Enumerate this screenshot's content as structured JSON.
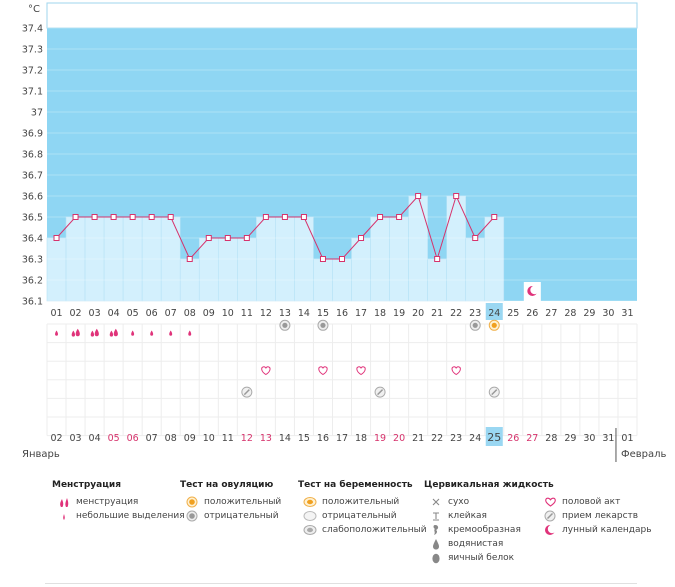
{
  "chart_data": {
    "type": "line",
    "unit_label": "°C",
    "ylim": [
      36.1,
      37.4
    ],
    "y_ticks": [
      "37.4",
      "37.3",
      "37.2",
      "37.1",
      "37",
      "36.9",
      "36.8",
      "36.7",
      "36.6",
      "36.5",
      "36.4",
      "36.3",
      "36.2",
      "36.1"
    ],
    "days": [
      "01",
      "02",
      "03",
      "04",
      "05",
      "06",
      "07",
      "08",
      "09",
      "10",
      "11",
      "12",
      "13",
      "14",
      "15",
      "16",
      "17",
      "18",
      "19",
      "20",
      "21",
      "22",
      "23",
      "24",
      "25",
      "26",
      "27",
      "28",
      "29",
      "30",
      "31"
    ],
    "temperatures": [
      36.4,
      36.5,
      36.5,
      36.5,
      36.5,
      36.5,
      36.5,
      36.3,
      36.4,
      36.4,
      36.4,
      36.5,
      36.5,
      36.5,
      36.3,
      36.3,
      36.4,
      36.5,
      36.5,
      36.6,
      36.3,
      36.6,
      36.4,
      36.5
    ],
    "current_day": "24",
    "menstruation": {
      "heavy": [
        "02",
        "03",
        "04"
      ],
      "light": [
        "01",
        "05",
        "06",
        "07",
        "08"
      ]
    },
    "ovulation_negative": [
      "13",
      "15",
      "23"
    ],
    "ovulation_positive": [
      "24"
    ],
    "intercourse": [
      "12",
      "15",
      "17",
      "22"
    ],
    "medication": [
      "11",
      "18",
      "24"
    ],
    "moon_days": [
      "26"
    ],
    "calendar_dates": [
      "02",
      "03",
      "04",
      "05",
      "06",
      "07",
      "08",
      "09",
      "10",
      "11",
      "12",
      "13",
      "14",
      "15",
      "16",
      "17",
      "18",
      "19",
      "20",
      "21",
      "22",
      "23",
      "24",
      "25",
      "26",
      "27",
      "28",
      "29",
      "30",
      "31",
      "01"
    ],
    "weekend_dates": [
      "05",
      "06",
      "12",
      "13",
      "19",
      "20",
      "26",
      "27"
    ],
    "calendar_today": "25",
    "month_start": "Январь",
    "month_end": "Февраль"
  },
  "legend": {
    "menstruation": {
      "title": "Менструация",
      "items": [
        "менструация",
        "небольшие выделения"
      ]
    },
    "ovulation": {
      "title": "Тест на овуляцию",
      "items": [
        "положительный",
        "отрицательный"
      ]
    },
    "pregnancy": {
      "title": "Тест на беременность",
      "items": [
        "положительный",
        "отрицательный",
        "слабоположительный"
      ]
    },
    "cervical": {
      "title": "Цервикальная жидкость",
      "items": [
        "сухо",
        "клейкая",
        "кремообразная",
        "водянистая",
        "яичный белок"
      ]
    },
    "other": {
      "items": [
        "половой акт",
        "прием лекарств",
        "лунный календарь"
      ]
    }
  },
  "colors": {
    "background": "#8fd6f3",
    "column": "#d3f0fd",
    "line": "#d6336c",
    "accent": "#e0337a",
    "today": "#9ad7f2"
  }
}
